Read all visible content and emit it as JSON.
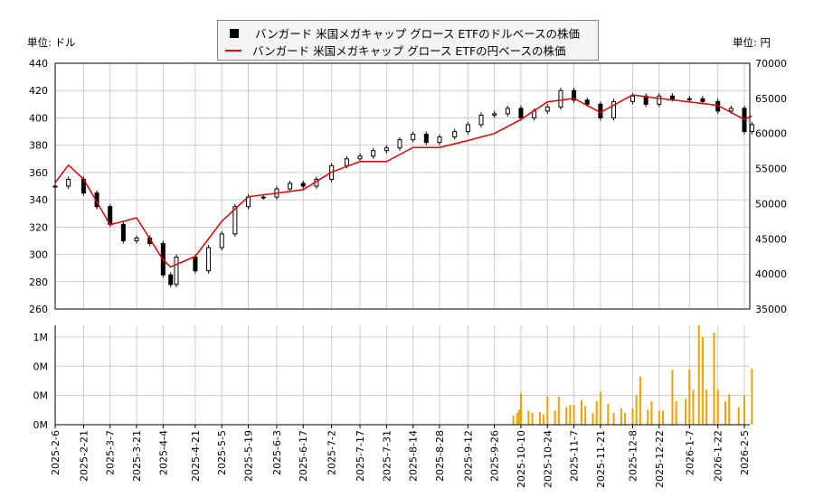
{
  "units": {
    "left": "単位: ドル",
    "right": "単位: 円"
  },
  "legend": {
    "dollar": "バンガード 米国メガキャップ グロース ETFのドルベースの株価",
    "yen": "バンガード 米国メガキャップ グロース ETFの円ベースの株価"
  },
  "chart_data": [
    {
      "type": "line",
      "left_ylim": [
        260,
        440
      ],
      "left_ticks": [
        "260",
        "280",
        "300",
        "320",
        "340",
        "360",
        "380",
        "400",
        "420",
        "440"
      ],
      "right_ylim": [
        35000,
        70000
      ],
      "right_ticks": [
        "35000",
        "40000",
        "45000",
        "50000",
        "55000",
        "60000",
        "65000",
        "70000"
      ],
      "grid": true,
      "legend_position": "top",
      "colors": {
        "dollar": "#000000",
        "yen": "#e00000"
      },
      "dollar_series": [
        [
          "2025-02-06",
          350
        ],
        [
          "2025-02-13",
          355
        ],
        [
          "2025-02-21",
          345
        ],
        [
          "2025-02-28",
          335
        ],
        [
          "2025-03-07",
          322
        ],
        [
          "2025-03-14",
          310
        ],
        [
          "2025-03-21",
          312
        ],
        [
          "2025-03-28",
          308
        ],
        [
          "2025-04-04",
          285
        ],
        [
          "2025-04-08",
          278
        ],
        [
          "2025-04-11",
          298
        ],
        [
          "2025-04-21",
          288
        ],
        [
          "2025-04-28",
          305
        ],
        [
          "2025-05-05",
          315
        ],
        [
          "2025-05-12",
          335
        ],
        [
          "2025-05-19",
          342
        ],
        [
          "2025-05-27",
          342
        ],
        [
          "2025-06-03",
          348
        ],
        [
          "2025-06-10",
          352
        ],
        [
          "2025-06-17",
          350
        ],
        [
          "2025-06-24",
          355
        ],
        [
          "2025-07-02",
          365
        ],
        [
          "2025-07-10",
          370
        ],
        [
          "2025-07-17",
          372
        ],
        [
          "2025-07-24",
          376
        ],
        [
          "2025-07-31",
          378
        ],
        [
          "2025-08-07",
          384
        ],
        [
          "2025-08-14",
          388
        ],
        [
          "2025-08-21",
          382
        ],
        [
          "2025-08-28",
          386
        ],
        [
          "2025-09-05",
          390
        ],
        [
          "2025-09-12",
          395
        ],
        [
          "2025-09-19",
          402
        ],
        [
          "2025-09-26",
          403
        ],
        [
          "2025-10-03",
          407
        ],
        [
          "2025-10-10",
          400
        ],
        [
          "2025-10-17",
          405
        ],
        [
          "2025-10-24",
          408
        ],
        [
          "2025-10-31",
          420
        ],
        [
          "2025-11-07",
          413
        ],
        [
          "2025-11-14",
          410
        ],
        [
          "2025-11-21",
          400
        ],
        [
          "2025-11-28",
          412
        ],
        [
          "2025-12-08",
          416
        ],
        [
          "2025-12-15",
          410
        ],
        [
          "2025-12-22",
          416
        ],
        [
          "2025-12-29",
          414
        ],
        [
          "2026-01-07",
          414
        ],
        [
          "2026-01-14",
          412
        ],
        [
          "2026-01-22",
          405
        ],
        [
          "2026-01-29",
          407
        ],
        [
          "2026-02-05",
          390
        ],
        [
          "2026-02-09",
          395
        ]
      ],
      "yen_series": [
        [
          "2025-02-06",
          53000
        ],
        [
          "2025-02-13",
          55500
        ],
        [
          "2025-02-21",
          53500
        ],
        [
          "2025-03-07",
          47000
        ],
        [
          "2025-03-21",
          48000
        ],
        [
          "2025-04-04",
          42000
        ],
        [
          "2025-04-08",
          41000
        ],
        [
          "2025-04-21",
          42500
        ],
        [
          "2025-05-05",
          47500
        ],
        [
          "2025-05-19",
          51000
        ],
        [
          "2025-06-03",
          51500
        ],
        [
          "2025-06-17",
          52000
        ],
        [
          "2025-07-02",
          54500
        ],
        [
          "2025-07-17",
          56000
        ],
        [
          "2025-07-31",
          56000
        ],
        [
          "2025-08-14",
          58000
        ],
        [
          "2025-08-28",
          58000
        ],
        [
          "2025-09-12",
          59000
        ],
        [
          "2025-09-26",
          60000
        ],
        [
          "2025-10-10",
          62000
        ],
        [
          "2025-10-24",
          64500
        ],
        [
          "2025-11-07",
          65000
        ],
        [
          "2025-11-21",
          63000
        ],
        [
          "2025-12-08",
          65500
        ],
        [
          "2025-12-22",
          65000
        ],
        [
          "2026-01-07",
          64500
        ],
        [
          "2026-01-22",
          64000
        ],
        [
          "2026-02-05",
          62000
        ],
        [
          "2026-02-09",
          62500
        ]
      ]
    },
    {
      "type": "bar",
      "ylim": [
        0,
        0.85
      ],
      "yticks": [
        {
          "v": 0,
          "label": "0M"
        },
        {
          "v": 0.25,
          "label": "0M"
        },
        {
          "v": 0.5,
          "label": "0M"
        },
        {
          "v": 0.75,
          "label": "1M"
        }
      ],
      "color": "#f0a000",
      "x_ticks": [
        "2025-2-6",
        "2025-2-21",
        "2025-3-7",
        "2025-3-21",
        "2025-4-4",
        "2025-4-21",
        "2025-5-5",
        "2025-5-19",
        "2025-6-3",
        "2025-6-17",
        "2025-7-2",
        "2025-7-17",
        "2025-7-31",
        "2025-8-14",
        "2025-8-28",
        "2025-9-12",
        "2025-9-26",
        "2025-10-10",
        "2025-10-24",
        "2025-11-7",
        "2025-11-21",
        "2025-12-8",
        "2025-12-22",
        "2026-1-7",
        "2026-1-22",
        "2026-2-5"
      ],
      "volume": [
        [
          "2025-10-06",
          0.08
        ],
        [
          "2025-10-08",
          0.1
        ],
        [
          "2025-10-09",
          0.13
        ],
        [
          "2025-10-10",
          0.27
        ],
        [
          "2025-10-14",
          0.12
        ],
        [
          "2025-10-16",
          0.1
        ],
        [
          "2025-10-20",
          0.11
        ],
        [
          "2025-10-22",
          0.09
        ],
        [
          "2025-10-24",
          0.24
        ],
        [
          "2025-10-28",
          0.12
        ],
        [
          "2025-10-30",
          0.24
        ],
        [
          "2025-11-03",
          0.15
        ],
        [
          "2025-11-05",
          0.17
        ],
        [
          "2025-11-07",
          0.17
        ],
        [
          "2025-11-11",
          0.21
        ],
        [
          "2025-11-13",
          0.16
        ],
        [
          "2025-11-17",
          0.1
        ],
        [
          "2025-11-19",
          0.2
        ],
        [
          "2025-11-21",
          0.28
        ],
        [
          "2025-11-25",
          0.18
        ],
        [
          "2025-11-28",
          0.1
        ],
        [
          "2025-12-02",
          0.14
        ],
        [
          "2025-12-04",
          0.1
        ],
        [
          "2025-12-08",
          0.14
        ],
        [
          "2025-12-10",
          0.25
        ],
        [
          "2025-12-12",
          0.41
        ],
        [
          "2025-12-16",
          0.13
        ],
        [
          "2025-12-18",
          0.2
        ],
        [
          "2025-12-22",
          0.12
        ],
        [
          "2025-12-24",
          0.12
        ],
        [
          "2025-12-29",
          0.47
        ],
        [
          "2025-12-31",
          0.2
        ],
        [
          "2026-01-05",
          0.22
        ],
        [
          "2026-01-07",
          0.47
        ],
        [
          "2026-01-09",
          0.3
        ],
        [
          "2026-01-12",
          0.85
        ],
        [
          "2026-01-14",
          0.75
        ],
        [
          "2026-01-16",
          0.3
        ],
        [
          "2026-01-20",
          0.79
        ],
        [
          "2026-01-22",
          0.3
        ],
        [
          "2026-01-26",
          0.2
        ],
        [
          "2026-01-28",
          0.26
        ],
        [
          "2026-02-02",
          0.15
        ],
        [
          "2026-02-05",
          0.25
        ],
        [
          "2026-02-09",
          0.48
        ]
      ]
    }
  ]
}
